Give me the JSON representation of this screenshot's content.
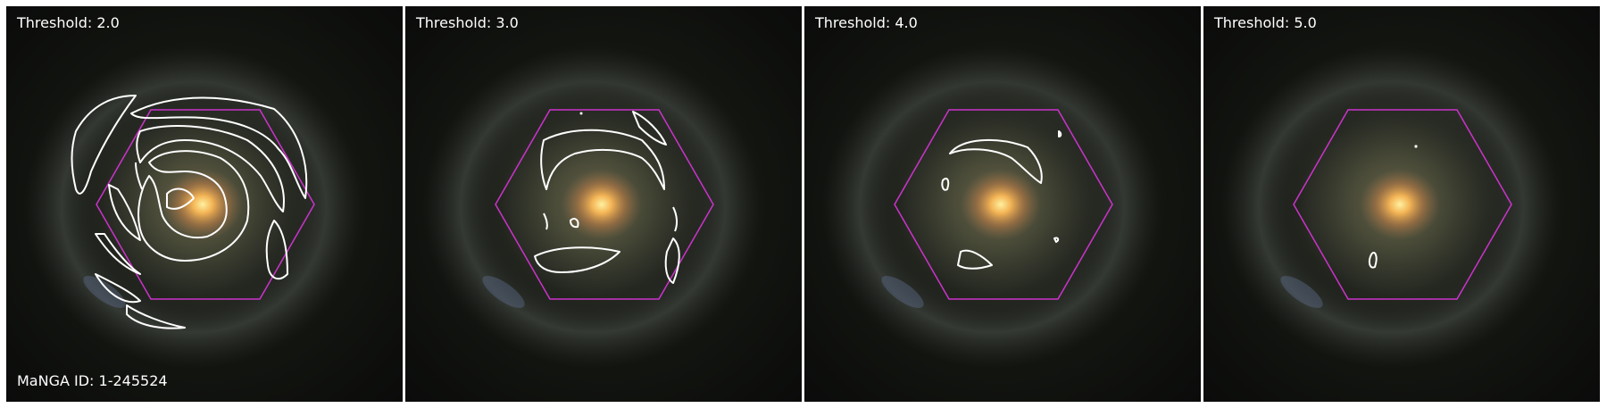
{
  "manga_id": "MaNGA ID: 1-245524",
  "colors": {
    "hexagon": "#cc33cc",
    "contour": "#ffffff",
    "text": "#ffffff"
  },
  "panels": [
    {
      "threshold_label": "Threshold: 2.0"
    },
    {
      "threshold_label": "Threshold: 3.0"
    },
    {
      "threshold_label": "Threshold: 4.0"
    },
    {
      "threshold_label": "Threshold: 5.0"
    }
  ]
}
